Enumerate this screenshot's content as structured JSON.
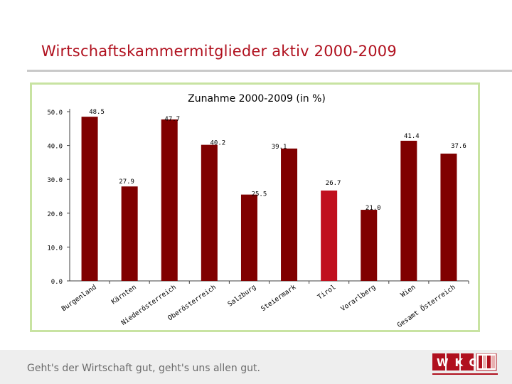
{
  "page": {
    "title": "Wirtschaftskammermitglieder aktiv 2000-2009",
    "slogan": "Geht's der Wirtschaft gut, geht's uns allen gut.",
    "logo_text": "WKO"
  },
  "colors": {
    "title": "#b0101e",
    "bar": "#800000",
    "bar_highlight": "#c0101e",
    "frame": "#c8e3a2",
    "axis": "#404040"
  },
  "chart_data": {
    "type": "bar",
    "title": "Zunahme 2000-2009 (in %)",
    "xlabel": "",
    "ylabel": "",
    "ylim": [
      0,
      50
    ],
    "yticks": [
      0,
      10,
      20,
      30,
      40,
      50
    ],
    "ytick_labels": [
      "0.0",
      "10.0",
      "20.0",
      "30.0",
      "40.0",
      "50.0"
    ],
    "grid": false,
    "categories": [
      "Burgenland",
      "Kärnten",
      "Niederösterreich",
      "Oberösterreich",
      "Salzburg",
      "Steiermark",
      "Tirol",
      "Vorarlberg",
      "Wien",
      "Gesamt Österreich"
    ],
    "values": [
      48.5,
      27.9,
      47.7,
      40.2,
      25.5,
      39.1,
      26.7,
      21.0,
      41.4,
      37.6
    ],
    "value_labels": [
      "48.5",
      "27.9",
      "47.7",
      "40.2",
      "25.5",
      "39.1",
      "26.7",
      "21.0",
      "41.4",
      "37.6"
    ],
    "highlight": [
      "Tirol"
    ]
  }
}
